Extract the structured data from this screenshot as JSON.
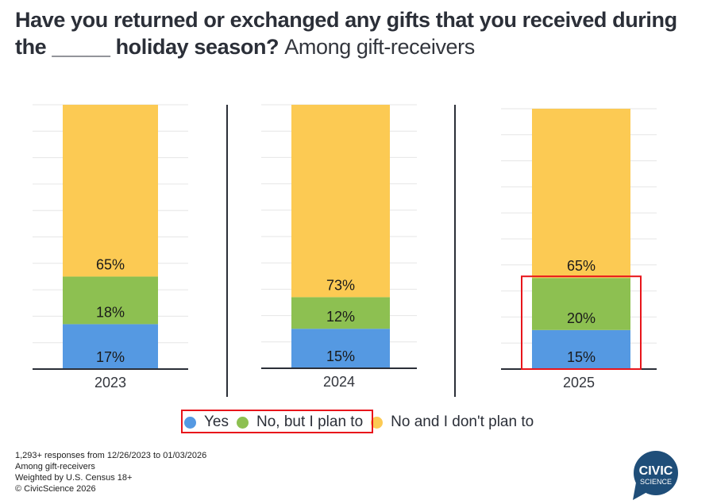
{
  "title": {
    "main": "Have you returned or exchanged any gifts that you received during the _____ holiday season?",
    "subtitle": "Among gift-receivers"
  },
  "colors": {
    "yes": "#5599e2",
    "plan": "#8dc051",
    "no_plan": "#fcca53",
    "highlight": "#e8151b",
    "axis": "#2b2f38",
    "grid": "#e6e6e6"
  },
  "chart_data": {
    "type": "bar",
    "stacked": true,
    "title": "Have you returned or exchanged any gifts that you received during the _____ holiday season?",
    "subtitle": "Among gift-receivers",
    "categories": [
      "2023",
      "2024",
      "2025"
    ],
    "series": [
      {
        "name": "Yes",
        "values": [
          17,
          15,
          15
        ],
        "labels": [
          "17%",
          "15%",
          "15%"
        ]
      },
      {
        "name": "No, but I plan to",
        "values": [
          18,
          12,
          20
        ],
        "labels": [
          "18%",
          "12%",
          "20%"
        ]
      },
      {
        "name": "No and I don't plan to",
        "values": [
          65,
          73,
          65
        ],
        "labels": [
          "65%",
          "73%",
          "65%"
        ]
      }
    ],
    "ylim": [
      0,
      100
    ],
    "grid": true,
    "legend": "bottom",
    "highlights": [
      "2025 bar: Yes + No, but I plan to segments",
      "legend: Yes, No, but I plan to"
    ]
  },
  "legend": {
    "items": [
      "Yes",
      "No, but I plan to",
      "No and I don't plan to"
    ]
  },
  "footer": {
    "lines": [
      "1,293+ responses from 12/26/2023 to 01/03/2026",
      "Among gift-receivers",
      "Weighted by U.S. Census 18+",
      "© CivicScience 2026"
    ]
  },
  "logo": {
    "line1": "CIVIC",
    "line2": "SCIENCE",
    "color": "#1f4e79"
  }
}
